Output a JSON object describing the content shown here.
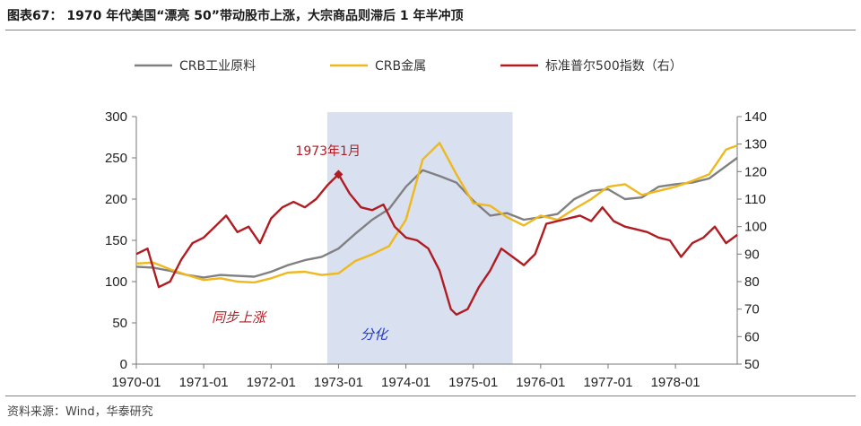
{
  "header": {
    "title": "图表67： 1970 年代美国“漂亮 50”带动股市上涨，大宗商品则滞后 1 年半冲顶"
  },
  "footer": {
    "source": "资料来源：Wind，华泰研究"
  },
  "chart_data": {
    "type": "line",
    "x_tick_labels": [
      "1970-01",
      "1971-01",
      "1972-01",
      "1973-01",
      "1974-01",
      "1975-01",
      "1976-01",
      "1977-01",
      "1978-01"
    ],
    "x_range": [
      "1970-01",
      "1978-12"
    ],
    "y_left": {
      "range": [
        0,
        300
      ],
      "ticks": [
        0,
        50,
        100,
        150,
        200,
        250,
        300
      ]
    },
    "y_right": {
      "range": [
        50,
        140
      ],
      "ticks": [
        50,
        60,
        70,
        80,
        90,
        100,
        110,
        120,
        130,
        140
      ]
    },
    "legend_position": "top",
    "grid": false,
    "shaded_region": {
      "from": "1972-11",
      "to": "1975-08",
      "color": "#d9e1f0"
    },
    "annotations": [
      {
        "text": "1973年1月",
        "x": "1973-01",
        "y_right": 119,
        "color": "#b01c22"
      },
      {
        "text": "同步上涨",
        "color": "#b01c22",
        "style": "italic"
      },
      {
        "text": "分化",
        "color": "#1f37c8",
        "style": "italic"
      }
    ],
    "series": [
      {
        "name": "CRB工业原料",
        "color": "#808080",
        "axis": "left",
        "x": [
          "1970-01",
          "1970-04",
          "1970-07",
          "1970-10",
          "1971-01",
          "1971-04",
          "1971-07",
          "1971-10",
          "1972-01",
          "1972-04",
          "1972-07",
          "1972-10",
          "1973-01",
          "1973-04",
          "1973-07",
          "1973-10",
          "1974-01",
          "1974-04",
          "1974-07",
          "1974-10",
          "1975-01",
          "1975-04",
          "1975-07",
          "1975-10",
          "1976-01",
          "1976-04",
          "1976-07",
          "1976-10",
          "1977-01",
          "1977-04",
          "1977-07",
          "1977-10",
          "1978-01",
          "1978-04",
          "1978-07",
          "1978-10",
          "1978-12"
        ],
        "values": [
          118,
          117,
          113,
          108,
          105,
          108,
          107,
          106,
          112,
          120,
          126,
          130,
          140,
          158,
          175,
          188,
          215,
          235,
          228,
          220,
          198,
          180,
          183,
          175,
          178,
          182,
          200,
          210,
          212,
          200,
          202,
          215,
          218,
          220,
          225,
          240,
          250
        ]
      },
      {
        "name": "CRB金属",
        "color": "#eeb81e",
        "axis": "left",
        "x": [
          "1970-01",
          "1970-04",
          "1970-07",
          "1970-10",
          "1971-01",
          "1971-04",
          "1971-07",
          "1971-10",
          "1972-01",
          "1972-04",
          "1972-07",
          "1972-10",
          "1973-01",
          "1973-04",
          "1973-07",
          "1973-10",
          "1974-01",
          "1974-04",
          "1974-07",
          "1974-10",
          "1975-01",
          "1975-04",
          "1975-07",
          "1975-10",
          "1976-01",
          "1976-04",
          "1976-07",
          "1976-10",
          "1977-01",
          "1977-04",
          "1977-07",
          "1977-10",
          "1978-01",
          "1978-04",
          "1978-07",
          "1978-10",
          "1978-12"
        ],
        "values": [
          122,
          123,
          115,
          108,
          102,
          104,
          100,
          99,
          104,
          111,
          112,
          108,
          110,
          125,
          133,
          143,
          175,
          248,
          268,
          230,
          195,
          192,
          178,
          168,
          180,
          175,
          188,
          200,
          215,
          218,
          205,
          210,
          215,
          222,
          230,
          260,
          265
        ]
      },
      {
        "name": "标准普尔500指数（右）",
        "color": "#b01c22",
        "axis": "right",
        "x": [
          "1970-01",
          "1970-03",
          "1970-05",
          "1970-07",
          "1970-09",
          "1970-11",
          "1971-01",
          "1971-03",
          "1971-05",
          "1971-07",
          "1971-09",
          "1971-11",
          "1972-01",
          "1972-03",
          "1972-05",
          "1972-07",
          "1972-09",
          "1972-11",
          "1973-01",
          "1973-03",
          "1973-05",
          "1973-07",
          "1973-09",
          "1973-11",
          "1974-01",
          "1974-03",
          "1974-05",
          "1974-07",
          "1974-09",
          "1974-10",
          "1974-12",
          "1975-02",
          "1975-04",
          "1975-06",
          "1975-08",
          "1975-10",
          "1975-12",
          "1976-02",
          "1976-04",
          "1976-06",
          "1976-08",
          "1976-10",
          "1976-12",
          "1977-02",
          "1977-04",
          "1977-06",
          "1977-08",
          "1977-10",
          "1977-12",
          "1978-02",
          "1978-04",
          "1978-06",
          "1978-08",
          "1978-10",
          "1978-12"
        ],
        "values": [
          90,
          92,
          78,
          80,
          88,
          94,
          96,
          100,
          104,
          98,
          100,
          94,
          103,
          107,
          109,
          107,
          110,
          115,
          119,
          112,
          107,
          106,
          108,
          100,
          96,
          95,
          92,
          84,
          70,
          68,
          70,
          78,
          84,
          92,
          89,
          86,
          90,
          101,
          102,
          103,
          104,
          102,
          107,
          102,
          100,
          99,
          98,
          96,
          95,
          89,
          94,
          96,
          100,
          94,
          97
        ]
      }
    ]
  }
}
